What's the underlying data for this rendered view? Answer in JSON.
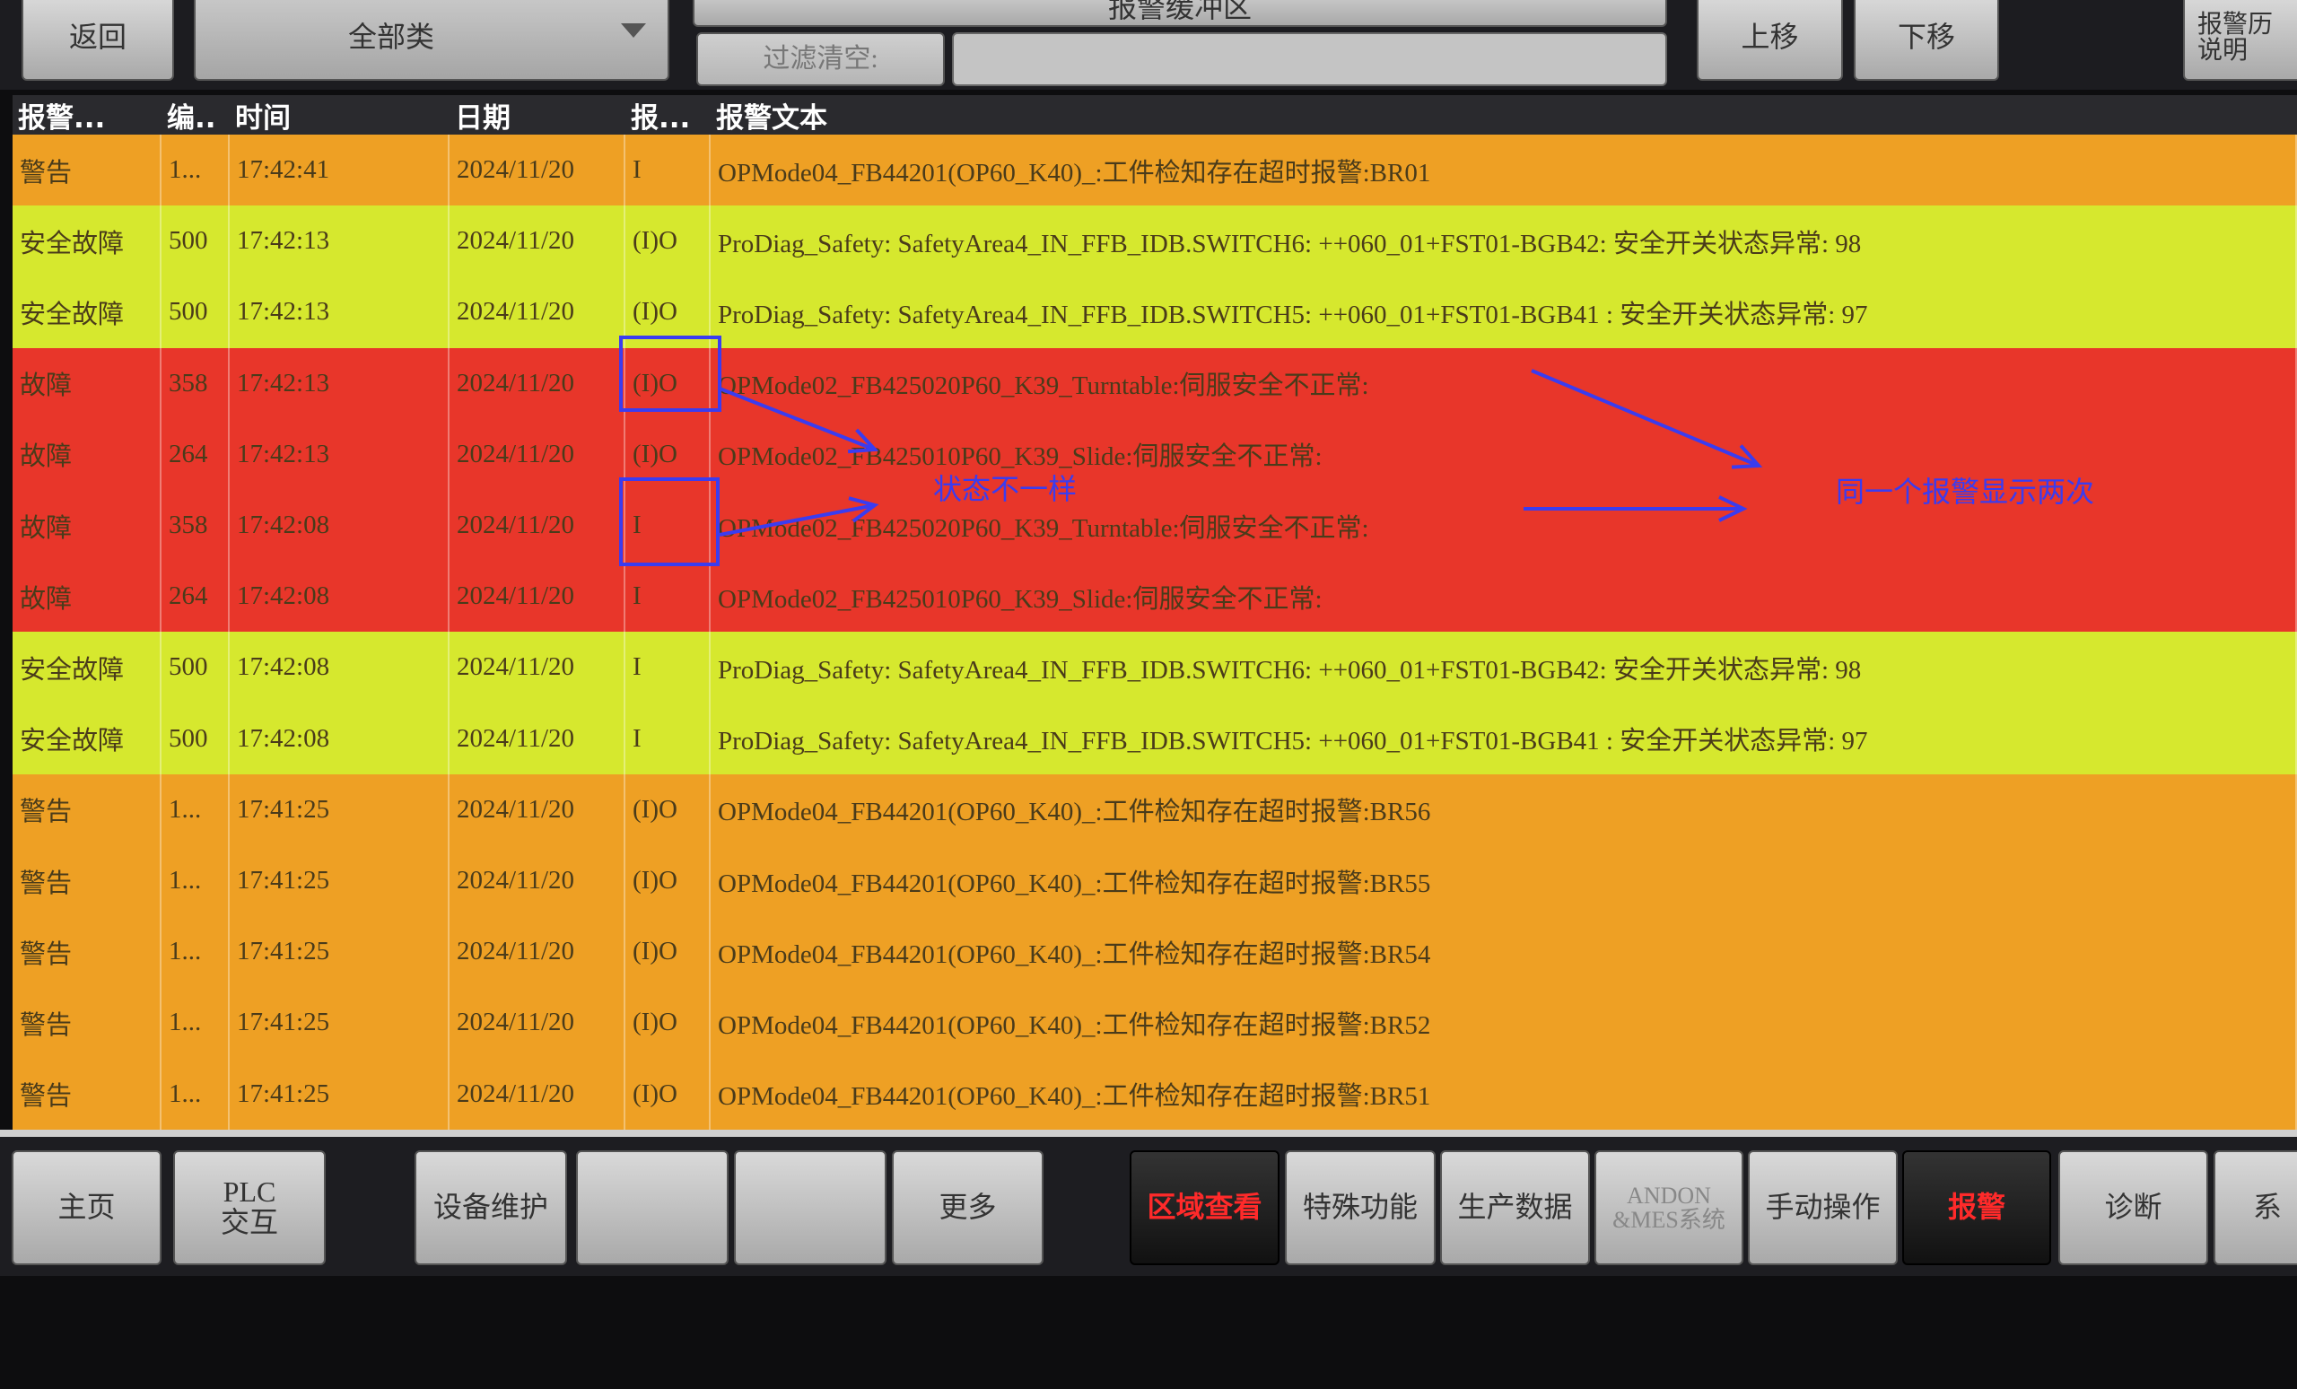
{
  "top_bar": {
    "back": "返回",
    "category": "全部类",
    "buffer_title": "报警缓冲区",
    "filter_label": "过滤清空:",
    "up": "上移",
    "down": "下移",
    "history": [
      "报警历",
      "说明"
    ]
  },
  "table": {
    "header": [
      "报警...",
      "编..",
      "时间",
      "日期",
      "报...",
      "报警文本"
    ],
    "rows": [
      {
        "color": "#eea024",
        "cells": [
          "警告",
          "1...",
          "17:42:41",
          "2024/11/20",
          "I",
          "OPMode04_FB44201(OP60_K40)_:工件检知存在超时报警:BR01"
        ]
      },
      {
        "color": "#d6e82e",
        "cells": [
          "安全故障",
          "500",
          "17:42:13",
          "2024/11/20",
          "(I)O",
          "ProDiag_Safety: SafetyArea4_IN_FFB_IDB.SWITCH6: ++060_01+FST01-BGB42: 安全开关状态异常: 98"
        ]
      },
      {
        "color": "#d6e82e",
        "cells": [
          "安全故障",
          "500",
          "17:42:13",
          "2024/11/20",
          "(I)O",
          "ProDiag_Safety: SafetyArea4_IN_FFB_IDB.SWITCH5: ++060_01+FST01-BGB41 : 安全开关状态异常: 97"
        ]
      },
      {
        "color": "#e8362a",
        "cells": [
          "故障",
          "358",
          "17:42:13",
          "2024/11/20",
          "(I)O",
          "OPMode02_FB425020P60_K39_Turntable:伺服安全不正常:"
        ]
      },
      {
        "color": "#e8362a",
        "cells": [
          "故障",
          "264",
          "17:42:13",
          "2024/11/20",
          "(I)O",
          "OPMode02_FB425010P60_K39_Slide:伺服安全不正常:"
        ]
      },
      {
        "color": "#e8362a",
        "cells": [
          "故障",
          "358",
          "17:42:08",
          "2024/11/20",
          "I",
          "OPMode02_FB425020P60_K39_Turntable:伺服安全不正常:"
        ]
      },
      {
        "color": "#e8362a",
        "cells": [
          "故障",
          "264",
          "17:42:08",
          "2024/11/20",
          "I",
          "OPMode02_FB425010P60_K39_Slide:伺服安全不正常:"
        ]
      },
      {
        "color": "#d6e82e",
        "cells": [
          "安全故障",
          "500",
          "17:42:08",
          "2024/11/20",
          "I",
          "ProDiag_Safety: SafetyArea4_IN_FFB_IDB.SWITCH6: ++060_01+FST01-BGB42: 安全开关状态异常: 98"
        ]
      },
      {
        "color": "#d6e82e",
        "cells": [
          "安全故障",
          "500",
          "17:42:08",
          "2024/11/20",
          "I",
          "ProDiag_Safety: SafetyArea4_IN_FFB_IDB.SWITCH5: ++060_01+FST01-BGB41 : 安全开关状态异常: 97"
        ]
      },
      {
        "color": "#eea024",
        "cells": [
          "警告",
          "1...",
          "17:41:25",
          "2024/11/20",
          "(I)O",
          "OPMode04_FB44201(OP60_K40)_:工件检知存在超时报警:BR56"
        ]
      },
      {
        "color": "#eea024",
        "cells": [
          "警告",
          "1...",
          "17:41:25",
          "2024/11/20",
          "(I)O",
          "OPMode04_FB44201(OP60_K40)_:工件检知存在超时报警:BR55"
        ]
      },
      {
        "color": "#eea024",
        "cells": [
          "警告",
          "1...",
          "17:41:25",
          "2024/11/20",
          "(I)O",
          "OPMode04_FB44201(OP60_K40)_:工件检知存在超时报警:BR54"
        ]
      },
      {
        "color": "#eea024",
        "cells": [
          "警告",
          "1...",
          "17:41:25",
          "2024/11/20",
          "(I)O",
          "OPMode04_FB44201(OP60_K40)_:工件检知存在超时报警:BR52"
        ]
      },
      {
        "color": "#eea024",
        "cells": [
          "警告",
          "1...",
          "17:41:25",
          "2024/11/20",
          "(I)O",
          "OPMode04_FB44201(OP60_K40)_:工件检知存在超时报警:BR51"
        ]
      }
    ]
  },
  "annotations": {
    "status_differs": "状态不一样",
    "shown_twice": "同一个报警显示两次"
  },
  "nav": [
    {
      "label": [
        "主页"
      ]
    },
    {
      "label": [
        "PLC",
        "交互"
      ]
    },
    {
      "label": [
        "设备维护"
      ]
    },
    {
      "label": [
        "更多"
      ]
    },
    {
      "label": [
        "区域查看"
      ],
      "active": true
    },
    {
      "label": [
        "特殊功能"
      ]
    },
    {
      "label": [
        "生产数据"
      ]
    },
    {
      "label": [
        "ANDON",
        "&MES系统"
      ],
      "disabled": true
    },
    {
      "label": [
        "手动操作"
      ]
    },
    {
      "label": [
        "报警"
      ],
      "active": true
    },
    {
      "label": [
        "诊断"
      ]
    },
    {
      "label": [
        "系"
      ]
    }
  ]
}
